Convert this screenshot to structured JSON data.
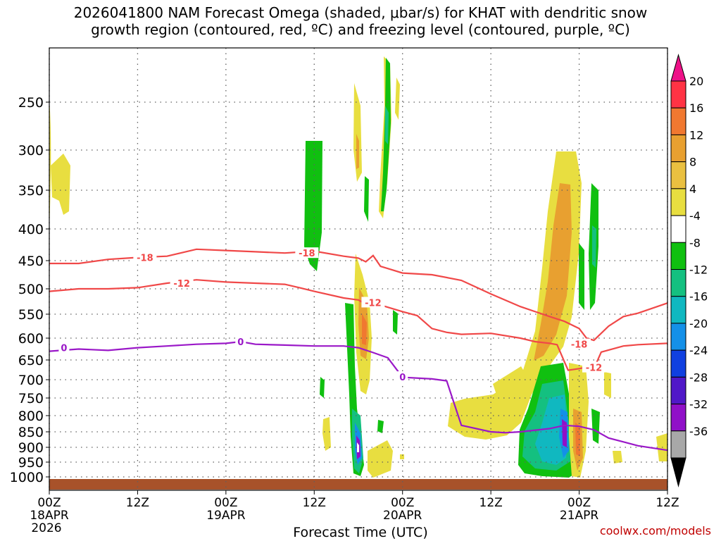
{
  "title_line1": "2026041800 NAM Forecast Omega (shaded, μbar/s) for KHAT with dendritic snow",
  "title_line2": "growth region (contoured, red, ºC) and freezing level (contoured, purple, ºC)",
  "credit": "coolwx.com/models",
  "chart_data": {
    "type": "heatmap",
    "xlabel": "Forecast Time (UTC)",
    "x_range_hours": [
      0,
      84
    ],
    "x_ticks": [
      {
        "hour": 0,
        "label": "00Z",
        "label2": "18APR",
        "label3": "2026"
      },
      {
        "hour": 12,
        "label": "12Z",
        "label2": "",
        "label3": ""
      },
      {
        "hour": 24,
        "label": "00Z",
        "label2": "19APR",
        "label3": ""
      },
      {
        "hour": 36,
        "label": "12Z",
        "label2": "",
        "label3": ""
      },
      {
        "hour": 48,
        "label": "00Z",
        "label2": "20APR",
        "label3": ""
      },
      {
        "hour": 60,
        "label": "12Z",
        "label2": "",
        "label3": ""
      },
      {
        "hour": 72,
        "label": "00Z",
        "label2": "21APR",
        "label3": ""
      },
      {
        "hour": 84,
        "label": "12Z",
        "label2": "",
        "label3": ""
      }
    ],
    "y_ticks": [
      250,
      300,
      350,
      400,
      450,
      500,
      550,
      600,
      650,
      700,
      750,
      800,
      850,
      900,
      950,
      1000
    ],
    "colorbar": {
      "labels": [
        20,
        16,
        12,
        8,
        4,
        -4,
        -8,
        -12,
        -16,
        -20,
        -24,
        -28,
        -32,
        -36
      ],
      "colors": [
        "#ff3344",
        "#f07830",
        "#e8a030",
        "#eac040",
        "#e8de40",
        "#ffffff",
        "#10c010",
        "#14c080",
        "#10b8c0",
        "#1490e8",
        "#1040e0",
        "#5018c8",
        "#9010c8",
        "#a8a8a8"
      ],
      "top_color": "#ee1188",
      "bottom_color": "#000000"
    },
    "contours": [
      {
        "label": "-18",
        "color": "#f04848",
        "points": [
          [
            0,
            455
          ],
          [
            4,
            455
          ],
          [
            8,
            448
          ],
          [
            12,
            445
          ],
          [
            16,
            443
          ],
          [
            20,
            432
          ],
          [
            24,
            434
          ],
          [
            28,
            436
          ],
          [
            32,
            438
          ],
          [
            36,
            435
          ],
          [
            40,
            443
          ],
          [
            42,
            446
          ],
          [
            43,
            452
          ],
          [
            44,
            442
          ],
          [
            45,
            460
          ],
          [
            48,
            472
          ],
          [
            52,
            475
          ],
          [
            56,
            485
          ],
          [
            60,
            510
          ],
          [
            64,
            535
          ],
          [
            68,
            555
          ],
          [
            70,
            565
          ],
          [
            72,
            580
          ],
          [
            73,
            600
          ],
          [
            74,
            605
          ],
          [
            76,
            575
          ],
          [
            78,
            555
          ],
          [
            80,
            548
          ],
          [
            84,
            528
          ]
        ],
        "labels_at": [
          [
            13,
            445
          ],
          [
            35,
            438
          ],
          [
            72,
            614
          ]
        ]
      },
      {
        "label": "-12",
        "color": "#f04848",
        "points": [
          [
            0,
            505
          ],
          [
            4,
            500
          ],
          [
            8,
            500
          ],
          [
            12,
            498
          ],
          [
            16,
            490
          ],
          [
            20,
            484
          ],
          [
            24,
            488
          ],
          [
            28,
            490
          ],
          [
            32,
            492
          ],
          [
            34,
            498
          ],
          [
            36,
            505
          ],
          [
            40,
            518
          ],
          [
            42,
            522
          ],
          [
            43,
            530
          ],
          [
            44,
            520
          ],
          [
            45,
            532
          ],
          [
            48,
            545
          ],
          [
            50,
            553
          ],
          [
            52,
            580
          ],
          [
            54,
            588
          ],
          [
            56,
            592
          ],
          [
            60,
            590
          ],
          [
            64,
            600
          ],
          [
            66,
            608
          ],
          [
            68,
            612
          ],
          [
            69,
            615
          ],
          [
            70,
            655
          ],
          [
            70.5,
            676
          ],
          [
            72,
            672
          ],
          [
            73,
            668
          ],
          [
            74,
            672
          ],
          [
            75,
            632
          ],
          [
            78,
            618
          ],
          [
            80,
            615
          ],
          [
            84,
            612
          ]
        ],
        "labels_at": [
          [
            18,
            490
          ],
          [
            44,
            527
          ],
          [
            74,
            669
          ]
        ]
      },
      {
        "label": "0",
        "color": "#9a18c8",
        "points": [
          [
            0,
            630
          ],
          [
            4,
            625
          ],
          [
            8,
            628
          ],
          [
            12,
            622
          ],
          [
            16,
            618
          ],
          [
            20,
            614
          ],
          [
            24,
            612
          ],
          [
            26,
            608
          ],
          [
            28,
            614
          ],
          [
            32,
            616
          ],
          [
            36,
            618
          ],
          [
            40,
            618
          ],
          [
            42,
            622
          ],
          [
            44,
            633
          ],
          [
            46,
            645
          ],
          [
            48,
            694
          ],
          [
            52,
            698
          ],
          [
            54,
            703
          ],
          [
            55,
            765
          ],
          [
            56,
            830
          ],
          [
            60,
            850
          ],
          [
            62,
            853
          ],
          [
            64,
            850
          ],
          [
            68,
            840
          ],
          [
            70,
            830
          ],
          [
            72,
            833
          ],
          [
            74,
            844
          ],
          [
            76,
            870
          ],
          [
            80,
            895
          ],
          [
            84,
            910
          ]
        ],
        "labels_at": [
          [
            2,
            622
          ],
          [
            26,
            608
          ],
          [
            48,
            693
          ]
        ]
      }
    ]
  }
}
